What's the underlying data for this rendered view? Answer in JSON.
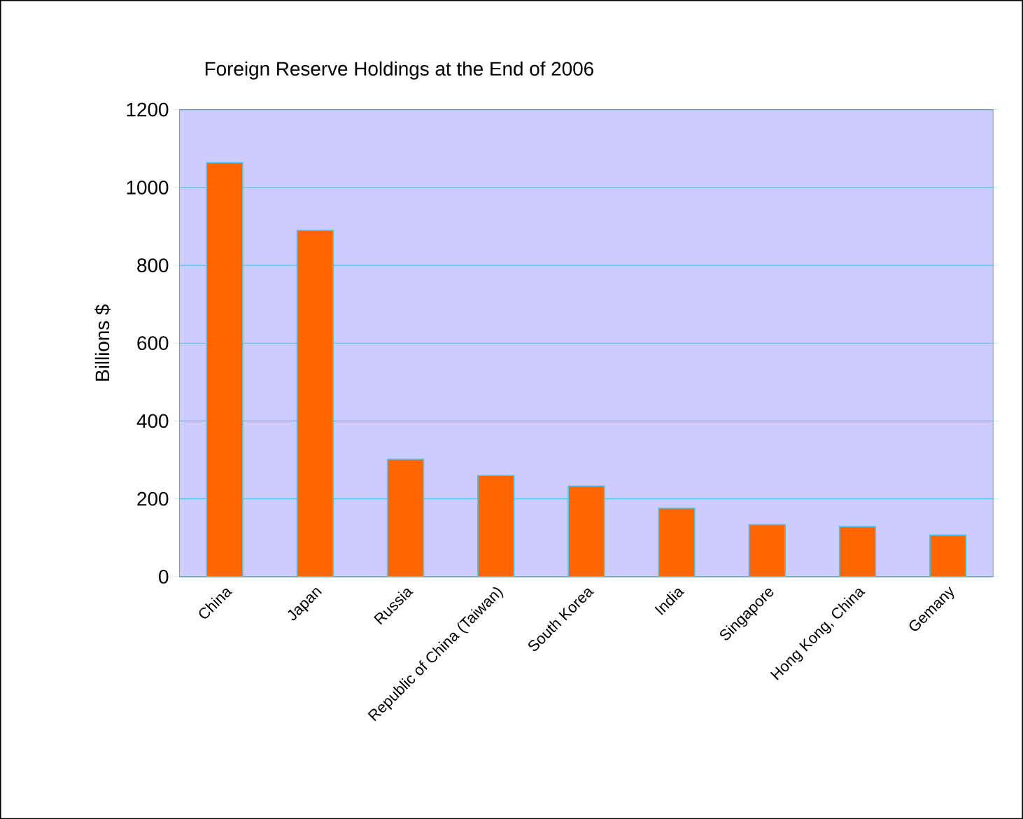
{
  "chart_data": {
    "type": "bar",
    "title": "Foreign Reserve Holdings at the End of 2006",
    "ylabel": "Billions $",
    "categories": [
      "China",
      "Japan",
      "Russia",
      "Republic of China (Taiwan)",
      "South Korea",
      "India",
      "Singapore",
      "Hong Kong, China",
      "Gemany"
    ],
    "values": [
      1064,
      890,
      302,
      260,
      233,
      176,
      134,
      129,
      107
    ],
    "color": "#ff6600",
    "ylim": [
      0,
      1200
    ],
    "yticks": [
      0,
      200,
      400,
      600,
      800,
      1000,
      1200
    ],
    "grid": "y"
  }
}
